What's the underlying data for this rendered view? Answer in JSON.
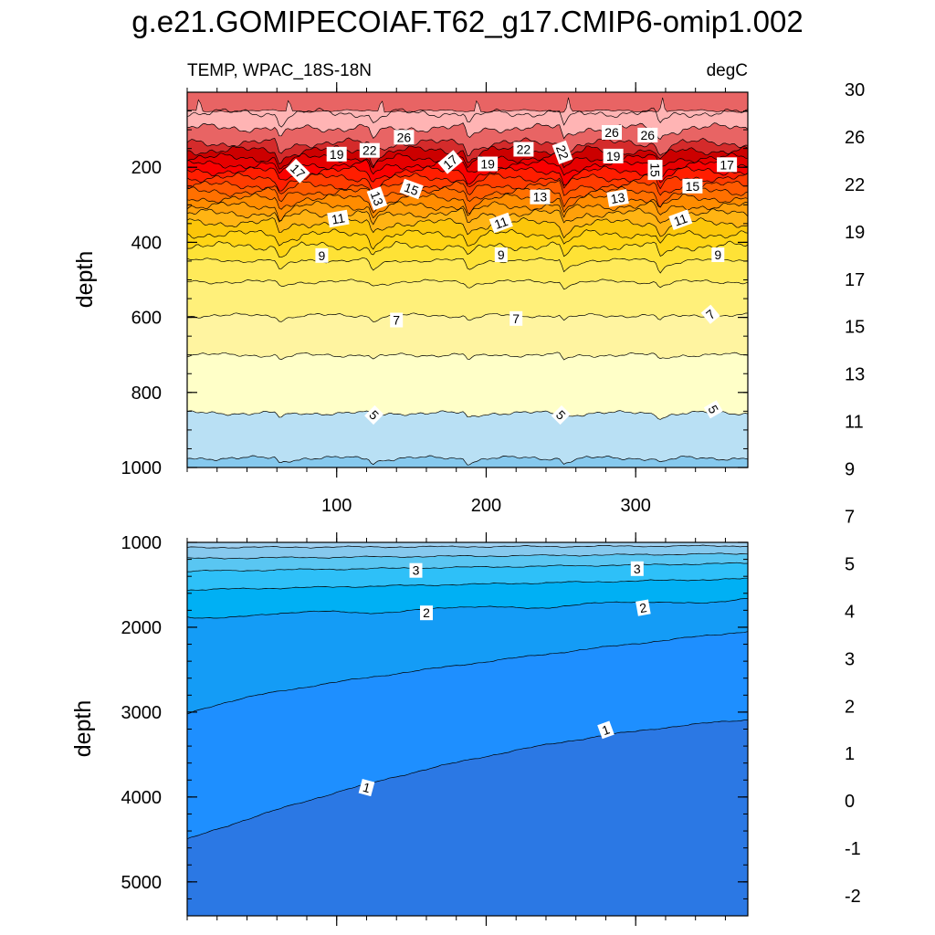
{
  "chart_data": {
    "type": "contour",
    "title": "g.e21.GOMIPECOIAF.T62_g17.CMIP6-omip1.002",
    "variable_label": "TEMP, WPAC_18S-18N",
    "units_label": "degC",
    "colorbar": {
      "colors": [
        "#7b2be3",
        "#5a2ee6",
        "#2a2aea",
        "#0019ff",
        "#233ee6",
        "#3d62de",
        "#2b78e4",
        "#1e8fff",
        "#149cf6",
        "#00b0f4",
        "#2ec0f8",
        "#59c6f2",
        "#86c9ee",
        "#a1d1f1",
        "#b9e0f4",
        "#ffffc8",
        "#fff4a0",
        "#fff07a",
        "#ffea5a",
        "#fee236",
        "#ffd414",
        "#fcc60a",
        "#ffb413",
        "#ffa00a",
        "#ff8c00",
        "#ff7000",
        "#ff5a00",
        "#ff3c00",
        "#ff1e00",
        "#fa0000",
        "#e60000",
        "#cc0000",
        "#d42b2b",
        "#e86464",
        "#ffb4b4"
      ],
      "tick_values": [
        "-2",
        "-1",
        "0",
        "1",
        "2",
        "3",
        "4",
        "5",
        "7",
        "9",
        "11",
        "13",
        "15",
        "17",
        "19",
        "22",
        "26",
        "30"
      ]
    },
    "panels": [
      {
        "name": "upper",
        "ylabel": "depth",
        "ylim": [
          0,
          1000
        ],
        "yticks": [
          "200",
          "400",
          "600",
          "800",
          "1000"
        ],
        "xlim": [
          0,
          375
        ],
        "xticks": [
          "100",
          "200",
          "300"
        ],
        "contour_levels": [
          30,
          28,
          26,
          24,
          22,
          20,
          19,
          18,
          17,
          16,
          15,
          14,
          13,
          12,
          11,
          10,
          9,
          8,
          7,
          6,
          5,
          4
        ],
        "mean_depths": [
          55,
          95,
          135,
          155,
          175,
          193,
          210,
          228,
          248,
          265,
          283,
          303,
          323,
          348,
          378,
          410,
          448,
          505,
          595,
          700,
          855,
          975
        ],
        "labels": [
          {
            "text": "26",
            "x": 145,
            "y": 120,
            "angle": 0
          },
          {
            "text": "22",
            "x": 122,
            "y": 155,
            "angle": 0
          },
          {
            "text": "19",
            "x": 100,
            "y": 165,
            "angle": 0
          },
          {
            "text": "17",
            "x": 74,
            "y": 210,
            "angle": 45
          },
          {
            "text": "15",
            "x": 150,
            "y": 258,
            "angle": 20
          },
          {
            "text": "13",
            "x": 127,
            "y": 283,
            "angle": 70
          },
          {
            "text": "11",
            "x": 101,
            "y": 337,
            "angle": -10
          },
          {
            "text": "9",
            "x": 90,
            "y": 435,
            "angle": 0
          },
          {
            "text": "7",
            "x": 140,
            "y": 607,
            "angle": 0
          },
          {
            "text": "5",
            "x": 125,
            "y": 860,
            "angle": 45
          },
          {
            "text": "17",
            "x": 176,
            "y": 186,
            "angle": -40
          },
          {
            "text": "19",
            "x": 201,
            "y": 191,
            "angle": 0
          },
          {
            "text": "22",
            "x": 225,
            "y": 152,
            "angle": 0
          },
          {
            "text": "22",
            "x": 251,
            "y": 160,
            "angle": 70
          },
          {
            "text": "13",
            "x": 236,
            "y": 279,
            "angle": 0
          },
          {
            "text": "11",
            "x": 210,
            "y": 348,
            "angle": -20
          },
          {
            "text": "9",
            "x": 210,
            "y": 433,
            "angle": 0
          },
          {
            "text": "7",
            "x": 220,
            "y": 603,
            "angle": 0
          },
          {
            "text": "5",
            "x": 250,
            "y": 860,
            "angle": 45
          },
          {
            "text": "26",
            "x": 284,
            "y": 107,
            "angle": 0
          },
          {
            "text": "26",
            "x": 308,
            "y": 114,
            "angle": 0
          },
          {
            "text": "19",
            "x": 285,
            "y": 170,
            "angle": 0
          },
          {
            "text": "15",
            "x": 313,
            "y": 207,
            "angle": 90
          },
          {
            "text": "15",
            "x": 338,
            "y": 250,
            "angle": 0
          },
          {
            "text": "17",
            "x": 361,
            "y": 193,
            "angle": 0
          },
          {
            "text": "13",
            "x": 288,
            "y": 282,
            "angle": -10
          },
          {
            "text": "11",
            "x": 330,
            "y": 340,
            "angle": -20
          },
          {
            "text": "9",
            "x": 355,
            "y": 433,
            "angle": 0
          },
          {
            "text": "7",
            "x": 350,
            "y": 592,
            "angle": -40
          },
          {
            "text": "5",
            "x": 352,
            "y": 845,
            "angle": 60
          }
        ]
      },
      {
        "name": "lower",
        "ylabel": "depth",
        "ylim": [
          1000,
          5400
        ],
        "yticks": [
          "1000",
          "2000",
          "3000",
          "4000",
          "5000"
        ],
        "xlim": [
          0,
          375
        ],
        "xticks": [],
        "contour_levels": [
          4,
          3.5,
          3,
          2.5,
          2,
          1.5,
          1
        ],
        "labels": [
          {
            "text": "3",
            "x": 153,
            "y": 1330,
            "angle": 0
          },
          {
            "text": "3",
            "x": 301,
            "y": 1310,
            "angle": 0
          },
          {
            "text": "2",
            "x": 160,
            "y": 1830,
            "angle": 0
          },
          {
            "text": "2",
            "x": 305,
            "y": 1770,
            "angle": -10
          },
          {
            "text": "1",
            "x": 120,
            "y": 3890,
            "angle": 15
          },
          {
            "text": "1",
            "x": 280,
            "y": 3210,
            "angle": -20
          }
        ]
      }
    ]
  }
}
